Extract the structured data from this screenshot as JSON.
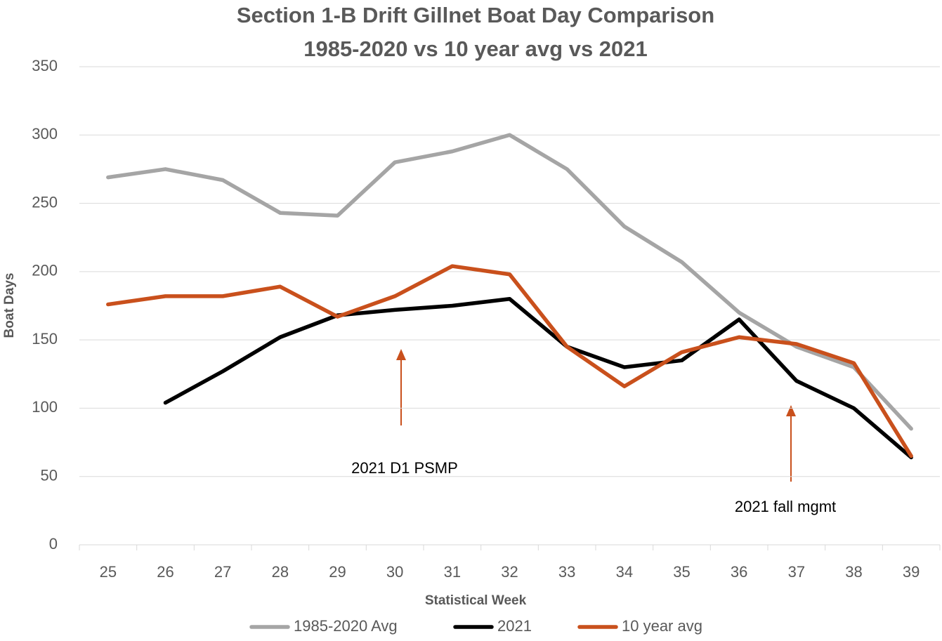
{
  "chart_data": {
    "type": "line",
    "title": "Section 1-B Drift Gillnet Boat Day Comparison",
    "subtitle": "1985-2020 vs 10 year avg vs 2021",
    "x_label": "Statistical Week",
    "y_label": "Boat Days",
    "categories": [
      25,
      26,
      27,
      28,
      29,
      30,
      31,
      32,
      33,
      34,
      35,
      36,
      37,
      38,
      39
    ],
    "series": [
      {
        "name": "1985-2020 Avg",
        "color": "#a5a5a5",
        "values": [
          269,
          275,
          267,
          243,
          241,
          280,
          288,
          300,
          275,
          233,
          207,
          170,
          145,
          130,
          85
        ]
      },
      {
        "name": "2021",
        "color": "#000000",
        "values": [
          null,
          104,
          127,
          152,
          168,
          172,
          175,
          180,
          145,
          130,
          135,
          165,
          120,
          100,
          64
        ]
      },
      {
        "name": "10 year avg",
        "color": "#c9501c",
        "values": [
          176,
          182,
          182,
          189,
          167,
          182,
          204,
          198,
          145,
          116,
          141,
          152,
          147,
          133,
          65
        ]
      }
    ],
    "annotations": [
      "2021 D1 PSMP",
      "2021 fall mgmt"
    ],
    "ylim": [
      0,
      350
    ],
    "yticks": [
      0,
      50,
      100,
      150,
      200,
      250,
      300,
      350
    ],
    "grid": true,
    "legend": "bottom"
  }
}
